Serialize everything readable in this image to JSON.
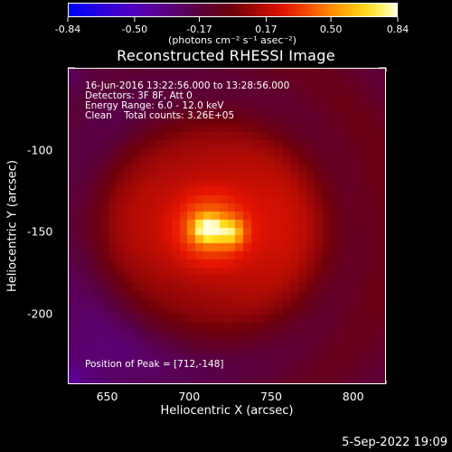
{
  "colorbar": {
    "ticks": [
      "-0.84",
      "-0.50",
      "-0.17",
      "0.17",
      "0.50",
      "0.84"
    ],
    "tick_values": [
      -0.84,
      -0.5,
      -0.17,
      0.17,
      0.5,
      0.84
    ],
    "range": [
      -0.84,
      0.84
    ],
    "units_text": "(photons cm⁻² s⁻¹ asec⁻²)"
  },
  "plot": {
    "title": "Reconstructed RHESSI Image",
    "annotation": {
      "line1": "16-Jun-2016 13:22:56.000 to 13:28:56.000",
      "line2": "Detectors: 3F 8F, Att 0",
      "line3": "Energy Range: 6.0 - 12.0 keV",
      "line4": "Clean    Total counts: 3.26E+05"
    },
    "peak_text": "Position of Peak = [712,-148]",
    "xlabel": "Heliocentric X (arcsec)",
    "ylabel": "Heliocentric Y (arcsec)",
    "xticks": [
      "650",
      "700",
      "750",
      "800"
    ],
    "xtick_values": [
      650,
      700,
      750,
      800
    ],
    "yticks": [
      "-100",
      "-150",
      "-200"
    ],
    "ytick_values": [
      -100,
      -150,
      -200
    ],
    "xlim": [
      626,
      820
    ],
    "ylim": [
      -243,
      -50
    ],
    "colormap": "hot-with-negative-blue",
    "colors": {
      "background": "#000000",
      "axis": "#ffffff",
      "negative": "#0000ff",
      "mid": "#7f007f",
      "peak": "#ffff80"
    }
  },
  "timestamp": "5-Sep-2022 19:09"
}
